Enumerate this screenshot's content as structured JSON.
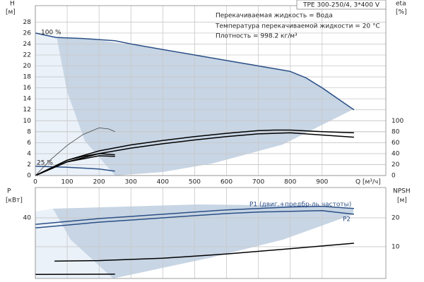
{
  "chart_data": [
    {
      "type": "line",
      "title": "TPE 300-250/4, 3*400 V",
      "annotations": [
        "Перекачиваемая жидкость = Вода",
        "Температура перекачиваемой жидкости = 20 °C",
        "Плотность = 998.2 кг/м³",
        "100 %",
        "25 %"
      ],
      "ylabel": "H",
      "yunit": "[м]",
      "y2label": "eta",
      "y2unit": "[%]",
      "xlabel": "Q [м³/ч]",
      "xlim": [
        0,
        1100
      ],
      "xticks": [
        0,
        100,
        200,
        300,
        400,
        500,
        600,
        700,
        800,
        900
      ],
      "ylim": [
        0,
        31
      ],
      "yticks": [
        0,
        2,
        4,
        6,
        8,
        10,
        12,
        14,
        16,
        18,
        20,
        22,
        24,
        26,
        28
      ],
      "y2lim": [
        0,
        310
      ],
      "y2ticks": [
        0,
        20,
        40,
        60,
        80,
        100
      ],
      "grid": true,
      "series": [
        {
          "color": "#2b4f86",
          "x": [
            0,
            65,
            150,
            250,
            300,
            400,
            500,
            600,
            700,
            800,
            850,
            900,
            950,
            1000
          ],
          "values": [
            26,
            25.2,
            25,
            24.6,
            24,
            23,
            22,
            21,
            20,
            19,
            17.8,
            16,
            14,
            12
          ]
        },
        {
          "color": "#2b4f86",
          "x": [
            0,
            100,
            200,
            250
          ],
          "values": [
            1.7,
            1.5,
            1.2,
            0.8
          ]
        },
        {
          "color": "#000000",
          "axis": "y2",
          "x": [
            0,
            100,
            200,
            300,
            400,
            500,
            600,
            700,
            750,
            800,
            900,
            1000
          ],
          "values": [
            0,
            28,
            45,
            56,
            64,
            71,
            77,
            82,
            83,
            83,
            80,
            78
          ]
        },
        {
          "color": "#000000",
          "axis": "y2",
          "x": [
            0,
            100,
            200,
            300,
            400,
            500,
            600,
            700,
            800,
            900,
            1000
          ],
          "values": [
            0,
            25,
            40,
            50,
            58,
            65,
            71,
            76,
            78,
            74,
            70
          ]
        },
        {
          "color": "#444444",
          "axis": "y2",
          "x": [
            0,
            50,
            100,
            150,
            200,
            230,
            250
          ],
          "values": [
            0,
            30,
            55,
            75,
            87,
            85,
            80
          ]
        },
        {
          "color": "#000000",
          "axis": "y2",
          "x": [
            0,
            100,
            150,
            200,
            250
          ],
          "values": [
            0,
            28,
            35,
            40,
            38
          ]
        },
        {
          "color": "#000000",
          "axis": "y2",
          "x": [
            0,
            100,
            200,
            250
          ],
          "values": [
            0,
            25,
            36,
            35
          ]
        }
      ]
    },
    {
      "type": "line",
      "annotations": [
        "P1 (двиг.+предбр-ль частоты)",
        "P2"
      ],
      "ylabel": "P",
      "yunit": "[кВт]",
      "y2label": "NPSH",
      "y2unit": "[м]",
      "xlim": [
        0,
        1100
      ],
      "ylim": [
        -2,
        61
      ],
      "yticks": [
        40
      ],
      "y2lim": [
        -1,
        30.5
      ],
      "y2ticks": [
        10,
        20
      ],
      "grid": true,
      "series": [
        {
          "color": "#2b4f86",
          "x": [
            0,
            100,
            200,
            300,
            400,
            500,
            600,
            700,
            800,
            900,
            1000
          ],
          "values": [
            35.5,
            37.5,
            39.5,
            41,
            42.5,
            44,
            45.5,
            46.5,
            47.5,
            48,
            46.5
          ]
        },
        {
          "color": "#2b4f86",
          "x": [
            0,
            100,
            200,
            300,
            400,
            500,
            600,
            700,
            800,
            900,
            1000
          ],
          "values": [
            33,
            35,
            37,
            38.5,
            40,
            41.5,
            43,
            44,
            44.5,
            45,
            42.5
          ]
        },
        {
          "color": "#000000",
          "axis": "y2",
          "x": [
            60,
            200,
            400,
            600,
            800,
            1000
          ],
          "values": [
            5,
            5.2,
            6,
            7.5,
            9.3,
            11.2
          ]
        },
        {
          "color": "#000000",
          "x": [
            0,
            250
          ],
          "values": [
            0.8,
            1
          ]
        }
      ]
    }
  ]
}
